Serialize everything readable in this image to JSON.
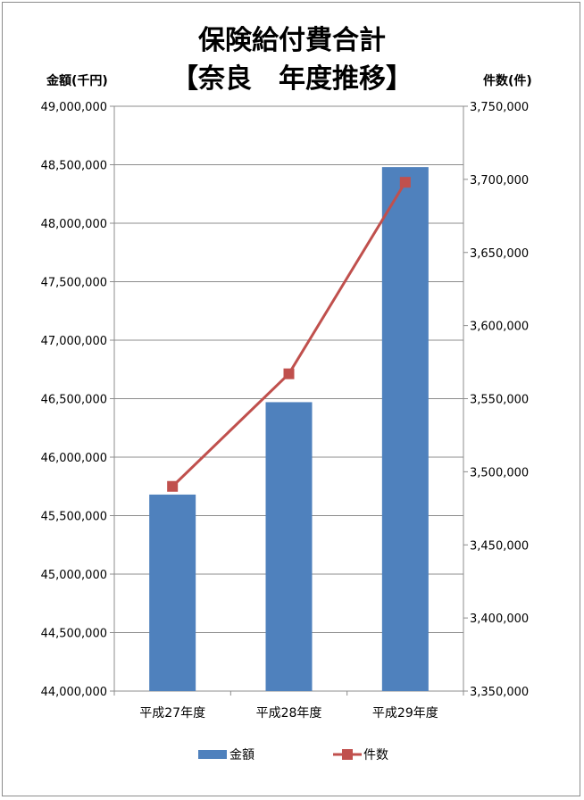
{
  "chart_data": {
    "type": "bar",
    "title": "保険給付費合計",
    "subtitle": "【奈良　年度推移】",
    "ylabel_left": "金額(千円)",
    "ylabel_right": "件数(件)",
    "categories": [
      "平成27年度",
      "平成28年度",
      "平成29年度"
    ],
    "series": [
      {
        "name": "金額",
        "type": "bar",
        "axis": "left",
        "color": "#4f81bd",
        "values": [
          45680000,
          46470000,
          48480000
        ]
      },
      {
        "name": "件数",
        "type": "line",
        "axis": "right",
        "color": "#c0504d",
        "marker": "square",
        "values": [
          3490000,
          3567000,
          3698000
        ]
      }
    ],
    "ylim_left": [
      44000000,
      49000000
    ],
    "ylim_right": [
      3350000,
      3750000
    ],
    "yticks_left": [
      "44,000,000",
      "44,500,000",
      "45,000,000",
      "45,500,000",
      "46,000,000",
      "46,500,000",
      "47,000,000",
      "47,500,000",
      "48,000,000",
      "48,500,000",
      "49,000,000"
    ],
    "yticks_right": [
      "3,350,000",
      "3,400,000",
      "3,450,000",
      "3,500,000",
      "3,550,000",
      "3,600,000",
      "3,650,000",
      "3,700,000",
      "3,750,000"
    ],
    "grid": true,
    "legend": "bottom"
  }
}
